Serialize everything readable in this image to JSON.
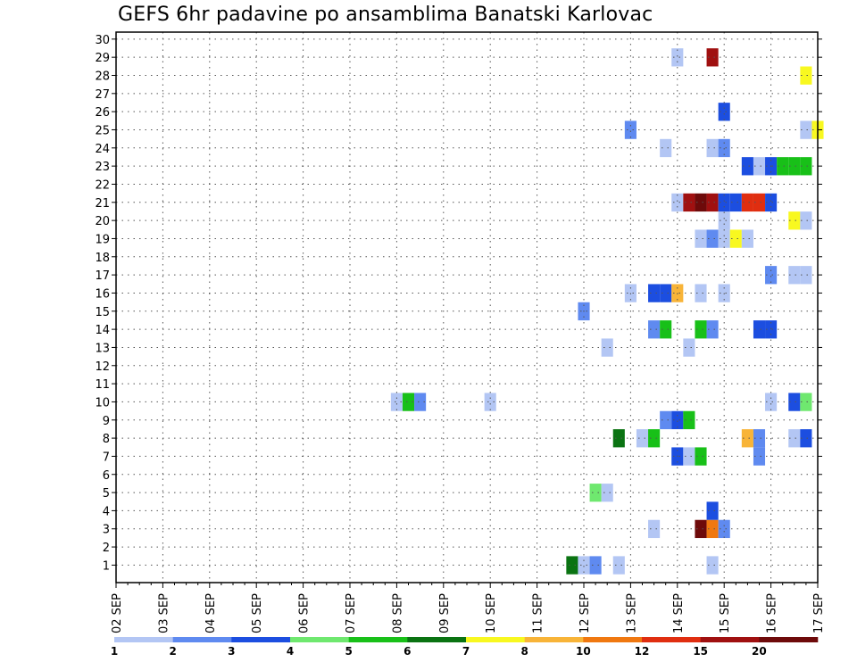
{
  "chart_data": {
    "type": "heatmap",
    "title": "GEFS 6hr padavine po ansamblima Banatski Karlovac",
    "x_tick_labels": [
      "02 SEP",
      "03 SEP",
      "04 SEP",
      "05 SEP",
      "06 SEP",
      "07 SEP",
      "08 SEP",
      "09 SEP",
      "10 SEP",
      "11 SEP",
      "12 SEP",
      "13 SEP",
      "14 SEP",
      "15 SEP",
      "16 SEP",
      "17 SEP"
    ],
    "y_tick_labels": [
      "1",
      "2",
      "3",
      "4",
      "5",
      "6",
      "7",
      "8",
      "9",
      "10",
      "11",
      "12",
      "13",
      "14",
      "15",
      "16",
      "17",
      "18",
      "19",
      "20",
      "21",
      "22",
      "23",
      "24",
      "25",
      "26",
      "27",
      "28",
      "29",
      "30"
    ],
    "x_unit": "6-hour step from 02 SEP 00Z",
    "x_steps": 60,
    "y_range": [
      1,
      30
    ],
    "grid": true,
    "colorbar": {
      "tick_labels": [
        "1",
        "2",
        "3",
        "4",
        "5",
        "6",
        "7",
        "8",
        "10",
        "12",
        "15",
        "20"
      ],
      "colors": [
        "#b3c6f4",
        "#5f8af0",
        "#1c4ee0",
        "#6fe86f",
        "#18c018",
        "#0a7312",
        "#f8f820",
        "#f8b438",
        "#f07810",
        "#e02e10",
        "#a01010",
        "#6e0a0a"
      ]
    },
    "cells": [
      {
        "m": 1,
        "t": 39,
        "c": 5
      },
      {
        "m": 1,
        "t": 40,
        "c": 0
      },
      {
        "m": 1,
        "t": 41,
        "c": 1
      },
      {
        "m": 1,
        "t": 43,
        "c": 0
      },
      {
        "m": 1,
        "t": 51,
        "c": 0
      },
      {
        "m": 3,
        "t": 46,
        "c": 0
      },
      {
        "m": 3,
        "t": 50,
        "c": 11
      },
      {
        "m": 3,
        "t": 51,
        "c": 8
      },
      {
        "m": 3,
        "t": 52,
        "c": 1
      },
      {
        "m": 4,
        "t": 51,
        "c": 2
      },
      {
        "m": 5,
        "t": 41,
        "c": 3
      },
      {
        "m": 5,
        "t": 42,
        "c": 0
      },
      {
        "m": 7,
        "t": 48,
        "c": 2
      },
      {
        "m": 7,
        "t": 49,
        "c": 0
      },
      {
        "m": 7,
        "t": 50,
        "c": 4
      },
      {
        "m": 7,
        "t": 55,
        "c": 1
      },
      {
        "m": 8,
        "t": 43,
        "c": 5
      },
      {
        "m": 8,
        "t": 45,
        "c": 0
      },
      {
        "m": 8,
        "t": 46,
        "c": 4
      },
      {
        "m": 8,
        "t": 54,
        "c": 7
      },
      {
        "m": 8,
        "t": 55,
        "c": 1
      },
      {
        "m": 8,
        "t": 58,
        "c": 0
      },
      {
        "m": 8,
        "t": 59,
        "c": 2
      },
      {
        "m": 9,
        "t": 47,
        "c": 1
      },
      {
        "m": 9,
        "t": 48,
        "c": 2
      },
      {
        "m": 9,
        "t": 49,
        "c": 4
      },
      {
        "m": 10,
        "t": 24,
        "c": 0
      },
      {
        "m": 10,
        "t": 25,
        "c": 4
      },
      {
        "m": 10,
        "t": 26,
        "c": 1
      },
      {
        "m": 10,
        "t": 32,
        "c": 0
      },
      {
        "m": 10,
        "t": 56,
        "c": 0
      },
      {
        "m": 10,
        "t": 58,
        "c": 2
      },
      {
        "m": 10,
        "t": 59,
        "c": 3
      },
      {
        "m": 13,
        "t": 42,
        "c": 0
      },
      {
        "m": 13,
        "t": 49,
        "c": 0
      },
      {
        "m": 14,
        "t": 46,
        "c": 1
      },
      {
        "m": 14,
        "t": 47,
        "c": 4
      },
      {
        "m": 14,
        "t": 50,
        "c": 4
      },
      {
        "m": 14,
        "t": 51,
        "c": 1
      },
      {
        "m": 14,
        "t": 55,
        "c": 2
      },
      {
        "m": 14,
        "t": 56,
        "c": 2
      },
      {
        "m": 15,
        "t": 40,
        "c": 1
      },
      {
        "m": 16,
        "t": 44,
        "c": 0
      },
      {
        "m": 16,
        "t": 46,
        "c": 2
      },
      {
        "m": 16,
        "t": 47,
        "c": 2
      },
      {
        "m": 16,
        "t": 48,
        "c": 7
      },
      {
        "m": 16,
        "t": 50,
        "c": 0
      },
      {
        "m": 16,
        "t": 52,
        "c": 0
      },
      {
        "m": 17,
        "t": 56,
        "c": 1
      },
      {
        "m": 17,
        "t": 58,
        "c": 0
      },
      {
        "m": 17,
        "t": 59,
        "c": 0
      },
      {
        "m": 19,
        "t": 50,
        "c": 0
      },
      {
        "m": 19,
        "t": 51,
        "c": 1
      },
      {
        "m": 19,
        "t": 52,
        "c": 0
      },
      {
        "m": 19,
        "t": 53,
        "c": 6
      },
      {
        "m": 19,
        "t": 54,
        "c": 0
      },
      {
        "m": 20,
        "t": 52,
        "c": 0
      },
      {
        "m": 20,
        "t": 58,
        "c": 6
      },
      {
        "m": 20,
        "t": 59,
        "c": 0
      },
      {
        "m": 21,
        "t": 48,
        "c": 0
      },
      {
        "m": 21,
        "t": 49,
        "c": 10
      },
      {
        "m": 21,
        "t": 50,
        "c": 11
      },
      {
        "m": 21,
        "t": 51,
        "c": 10
      },
      {
        "m": 21,
        "t": 52,
        "c": 2
      },
      {
        "m": 21,
        "t": 53,
        "c": 2
      },
      {
        "m": 21,
        "t": 54,
        "c": 9
      },
      {
        "m": 21,
        "t": 55,
        "c": 9
      },
      {
        "m": 21,
        "t": 56,
        "c": 2
      },
      {
        "m": 23,
        "t": 54,
        "c": 2
      },
      {
        "m": 23,
        "t": 55,
        "c": 0
      },
      {
        "m": 23,
        "t": 56,
        "c": 2
      },
      {
        "m": 23,
        "t": 57,
        "c": 4
      },
      {
        "m": 23,
        "t": 58,
        "c": 4
      },
      {
        "m": 23,
        "t": 59,
        "c": 4
      },
      {
        "m": 24,
        "t": 47,
        "c": 0
      },
      {
        "m": 24,
        "t": 51,
        "c": 0
      },
      {
        "m": 24,
        "t": 52,
        "c": 1
      },
      {
        "m": 25,
        "t": 44,
        "c": 1
      },
      {
        "m": 25,
        "t": 59,
        "c": 0
      },
      {
        "m": 25,
        "t": 60,
        "c": 6
      },
      {
        "m": 26,
        "t": 52,
        "c": 2
      },
      {
        "m": 28,
        "t": 59,
        "c": 6
      },
      {
        "m": 29,
        "t": 48,
        "c": 0
      },
      {
        "m": 29,
        "t": 51,
        "c": 10
      }
    ]
  }
}
